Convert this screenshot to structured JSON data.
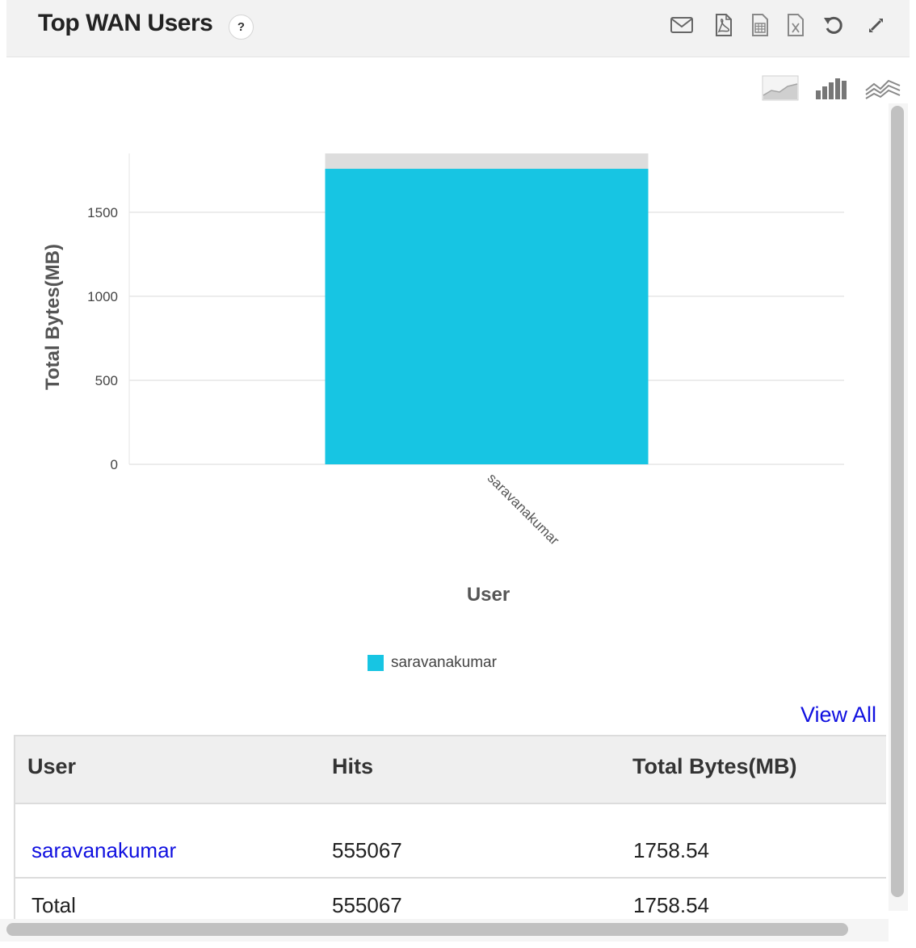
{
  "widget": {
    "title": "Top WAN Users",
    "help_label": "?",
    "toolbar": [
      {
        "name": "email-icon",
        "label": "Email"
      },
      {
        "name": "pdf-icon",
        "label": "Export PDF"
      },
      {
        "name": "csv-icon",
        "label": "Export CSV"
      },
      {
        "name": "excel-icon",
        "label": "Export Excel"
      },
      {
        "name": "refresh-icon",
        "label": "Refresh"
      },
      {
        "name": "expand-icon",
        "label": "Expand"
      }
    ],
    "chart_types": [
      {
        "name": "area-chart-icon"
      },
      {
        "name": "bar-chart-icon"
      },
      {
        "name": "line-chart-icon"
      }
    ]
  },
  "chart_data": {
    "type": "bar",
    "categories": [
      "saravanakumar"
    ],
    "series": [
      {
        "name": "saravanakumar",
        "values": [
          1758.54
        ],
        "color": "#17c5e3"
      }
    ],
    "xlabel": "User",
    "ylabel": "Total Bytes(MB)",
    "ylim": [
      0,
      1850
    ],
    "yticks": [
      0,
      500,
      1000,
      1500
    ],
    "grid": true,
    "legend_position": "bottom-center",
    "background_bar_color": "#dddddd"
  },
  "legend": {
    "label": "saravanakumar",
    "color": "#17c5e3"
  },
  "view_all_label": "View All",
  "table": {
    "headers": [
      "User",
      "Hits",
      "Total Bytes(MB)"
    ],
    "rows": [
      {
        "user": "saravanakumar",
        "hits": "555067",
        "bytes": "1758.54"
      }
    ],
    "total": {
      "label": "Total",
      "hits": "555067",
      "bytes": "1758.54"
    }
  }
}
